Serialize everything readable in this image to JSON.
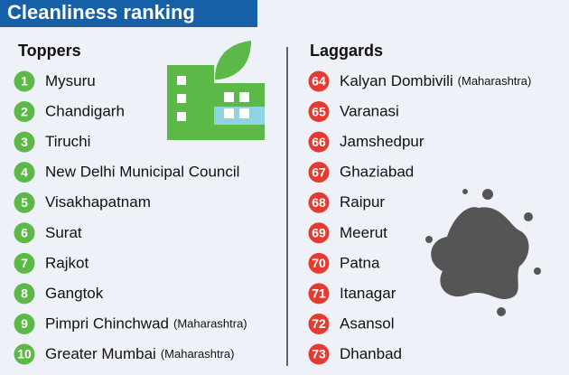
{
  "title": "Cleanliness ranking",
  "toppers": {
    "heading": "Toppers",
    "items": [
      {
        "rank": 1,
        "name": "Mysuru"
      },
      {
        "rank": 2,
        "name": "Chandigarh"
      },
      {
        "rank": 3,
        "name": "Tiruchi"
      },
      {
        "rank": 4,
        "name": "New Delhi Municipal Council"
      },
      {
        "rank": 5,
        "name": "Visakhapatnam"
      },
      {
        "rank": 6,
        "name": "Surat"
      },
      {
        "rank": 7,
        "name": "Rajkot"
      },
      {
        "rank": 8,
        "name": "Gangtok"
      },
      {
        "rank": 9,
        "name": "Pimpri Chinchwad",
        "note": "(Maharashtra)"
      },
      {
        "rank": 10,
        "name": "Greater Mumbai",
        "note": "(Maharashtra)"
      }
    ]
  },
  "laggards": {
    "heading": "Laggards",
    "items": [
      {
        "rank": 64,
        "name": "Kalyan Dombivili",
        "note": "(Maharashtra)"
      },
      {
        "rank": 65,
        "name": "Varanasi"
      },
      {
        "rank": 66,
        "name": "Jamshedpur"
      },
      {
        "rank": 67,
        "name": "Ghaziabad"
      },
      {
        "rank": 68,
        "name": "Raipur"
      },
      {
        "rank": 69,
        "name": "Meerut"
      },
      {
        "rank": 70,
        "name": "Patna"
      },
      {
        "rank": 71,
        "name": "Itanagar"
      },
      {
        "rank": 72,
        "name": "Asansol"
      },
      {
        "rank": 73,
        "name": "Dhanbad"
      }
    ]
  }
}
